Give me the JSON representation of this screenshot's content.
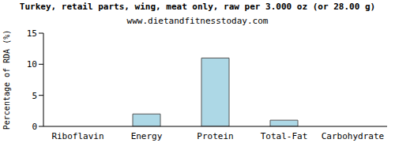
{
  "chart_data": {
    "type": "bar",
    "title": "Turkey, retail parts, wing, meat only, raw per 3.000 oz (or 28.00 g)",
    "subtitle": "www.dietandfitnesstoday.com",
    "y_label": "Percentage of RDA (%)",
    "categories": [
      "Riboflavin",
      "Energy",
      "Protein",
      "Total-Fat",
      "Carbohydrate"
    ],
    "values": [
      0,
      2,
      11,
      1,
      0
    ],
    "color": "#add8e6",
    "ylim": [
      0,
      15
    ],
    "yticks": [
      0,
      5,
      10,
      15
    ],
    "grid": false
  }
}
